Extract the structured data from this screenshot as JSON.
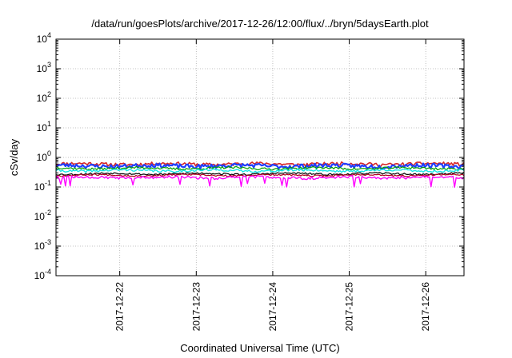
{
  "chart_data": {
    "type": "line",
    "title": "/data/run/goesPlots/archive/2017-12-26/12:00/flux/../bryn/5daysEarth.plot",
    "xlabel": "Coordinated Universal Time (UTC)",
    "ylabel": "cSv/day",
    "yscale": "log",
    "ylim": [
      0.0001,
      10000
    ],
    "xlim": [
      "2017-12-21 04:00",
      "2017-12-26 12:00"
    ],
    "y_ticks": [
      {
        "value": 0.0001,
        "base": "10",
        "exp": "-4"
      },
      {
        "value": 0.001,
        "base": "10",
        "exp": "-3"
      },
      {
        "value": 0.01,
        "base": "10",
        "exp": "-2"
      },
      {
        "value": 0.1,
        "base": "10",
        "exp": "-1"
      },
      {
        "value": 1,
        "base": "10",
        "exp": "0"
      },
      {
        "value": 10,
        "base": "10",
        "exp": "1"
      },
      {
        "value": 100,
        "base": "10",
        "exp": "2"
      },
      {
        "value": 1000,
        "base": "10",
        "exp": "3"
      },
      {
        "value": 10000,
        "base": "10",
        "exp": "4"
      }
    ],
    "x_ticks": [
      "2017-12-22",
      "2017-12-23",
      "2017-12-24",
      "2017-12-25",
      "2017-12-26"
    ],
    "grid": true,
    "legend": "none",
    "series": [
      {
        "color": "#d62728",
        "base": 0.6,
        "amp": 0.13,
        "seed": 11,
        "width": 1.6
      },
      {
        "color": "#1f3fff",
        "base": 0.52,
        "amp": 0.16,
        "seed": 23,
        "width": 2.2
      },
      {
        "color": "#00a000",
        "base": 0.43,
        "amp": 0.09,
        "seed": 37,
        "width": 1.2
      },
      {
        "color": "#19e6e6",
        "base": 0.36,
        "amp": 0.09,
        "seed": 41,
        "width": 1.4
      },
      {
        "color": "#000000",
        "base": 0.28,
        "amp": 0.07,
        "seed": 53,
        "width": 1.2
      },
      {
        "color": "#b00020",
        "base": 0.25,
        "amp": 0.06,
        "seed": 67,
        "width": 1.2
      },
      {
        "color": "#ff00ff",
        "base": 0.21,
        "amp": 0.1,
        "seed": 79,
        "width": 1.4,
        "dips": true
      }
    ]
  }
}
